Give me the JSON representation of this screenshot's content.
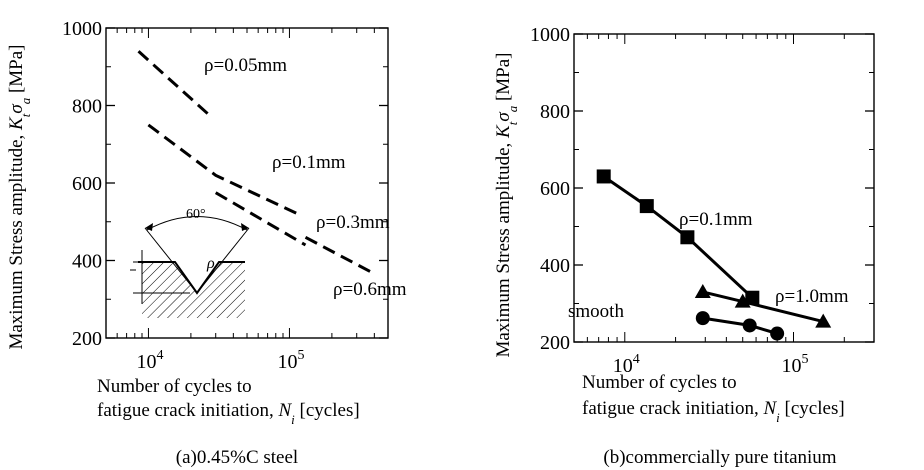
{
  "chart_data": [
    {
      "type": "line",
      "caption": "(a)0.45%C steel",
      "xlabel_line1": "Number of cycles to",
      "xlabel_line2": "fatigue crack initiation, ",
      "xlabel_sym": "N",
      "xlabel_sub": "i",
      "xlabel_unit": " [cycles]",
      "ylabel_prefix": "Maximum Stress amplitude, ",
      "ylabel_sym1": "K",
      "ylabel_sub1": "t",
      "ylabel_sym2": "σ",
      "ylabel_sub2": "a",
      "ylabel_unit": " [MPa]",
      "x_scale": "log",
      "xlim": [
        5000,
        500000
      ],
      "ylim": [
        200,
        1000
      ],
      "y_ticks": [
        "200",
        "400",
        "600",
        "800",
        "1000"
      ],
      "x_ticks": [
        {
          "value": 10000,
          "base": "10",
          "exp": "4"
        },
        {
          "value": 100000,
          "base": "10",
          "exp": "5"
        }
      ],
      "inset_angle_label": "60°",
      "inset_rho": "ρ",
      "series": [
        {
          "label": "ρ=0.05mm",
          "style": "dashed",
          "points": [
            [
              8500,
              940
            ],
            [
              28000,
              770
            ]
          ]
        },
        {
          "label": "ρ=0.1mm",
          "style": "dashed",
          "points": [
            [
              10000,
              750
            ],
            [
              30000,
              620
            ],
            [
              115000,
              520
            ]
          ]
        },
        {
          "label": "ρ=0.3mm",
          "style": "dashed",
          "points": [
            [
              30000,
              575
            ],
            [
              130000,
              440
            ]
          ]
        },
        {
          "label": "ρ=0.6mm",
          "style": "dashed",
          "points": [
            [
              130000,
              460
            ],
            [
              380000,
              370
            ]
          ]
        }
      ]
    },
    {
      "type": "line",
      "caption": "(b)commercially pure titanium",
      "xlabel_line1": "Number of cycles to",
      "xlabel_line2": "fatigue crack initiation, ",
      "xlabel_sym": "N",
      "xlabel_sub": "i",
      "xlabel_unit": " [cycles]",
      "ylabel_prefix": "Maximum Stress amplitude, ",
      "ylabel_sym1": "K",
      "ylabel_sub1": "t",
      "ylabel_sym2": "σ",
      "ylabel_sub2": "a",
      "ylabel_unit": " [MPa]",
      "x_scale": "log",
      "xlim": [
        5000,
        300000
      ],
      "ylim": [
        200,
        1000
      ],
      "y_ticks": [
        "200",
        "400",
        "600",
        "800",
        "1000"
      ],
      "x_ticks": [
        {
          "value": 10000,
          "base": "10",
          "exp": "4"
        },
        {
          "value": 100000,
          "base": "10",
          "exp": "5"
        }
      ],
      "series": [
        {
          "label": "ρ=0.1mm",
          "marker": "square",
          "points": [
            [
              7500,
              630
            ],
            [
              13500,
              553
            ],
            [
              23500,
              472
            ],
            [
              57000,
              315
            ]
          ]
        },
        {
          "label": "ρ=1.0mm",
          "marker": "triangle",
          "points": [
            [
              29000,
              330
            ],
            [
              50000,
              305
            ],
            [
              150000,
              253
            ]
          ]
        },
        {
          "label": "smooth",
          "marker": "circle",
          "points": [
            [
              29000,
              262
            ],
            [
              55000,
              243
            ],
            [
              80000,
              222
            ]
          ]
        }
      ]
    }
  ]
}
